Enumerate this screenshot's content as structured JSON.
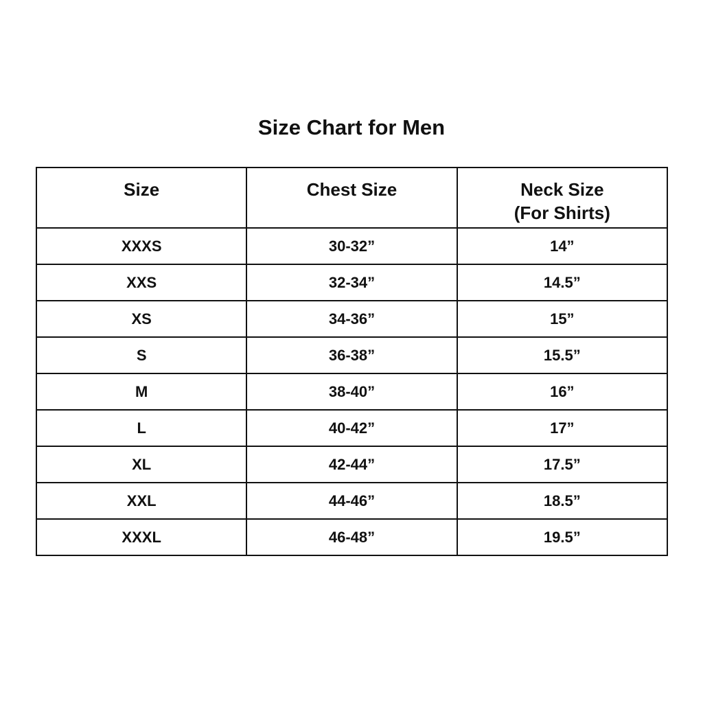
{
  "title": "Size Chart for Men",
  "table": {
    "headers": [
      "Size",
      "Chest Size",
      "Neck Size"
    ],
    "neck_subheader": "(For Shirts)",
    "rows": [
      [
        "XXXS",
        "30-32”",
        "14”"
      ],
      [
        "XXS",
        "32-34”",
        "14.5”"
      ],
      [
        "XS",
        "34-36”",
        "15”"
      ],
      [
        "S",
        "36-38”",
        "15.5”"
      ],
      [
        "M",
        "38-40”",
        "16”"
      ],
      [
        "L",
        "40-42”",
        "17”"
      ],
      [
        "XL",
        "42-44”",
        "17.5”"
      ],
      [
        "XXL",
        "44-46”",
        "18.5”"
      ],
      [
        "XXXL",
        "46-48”",
        "19.5”"
      ]
    ]
  }
}
